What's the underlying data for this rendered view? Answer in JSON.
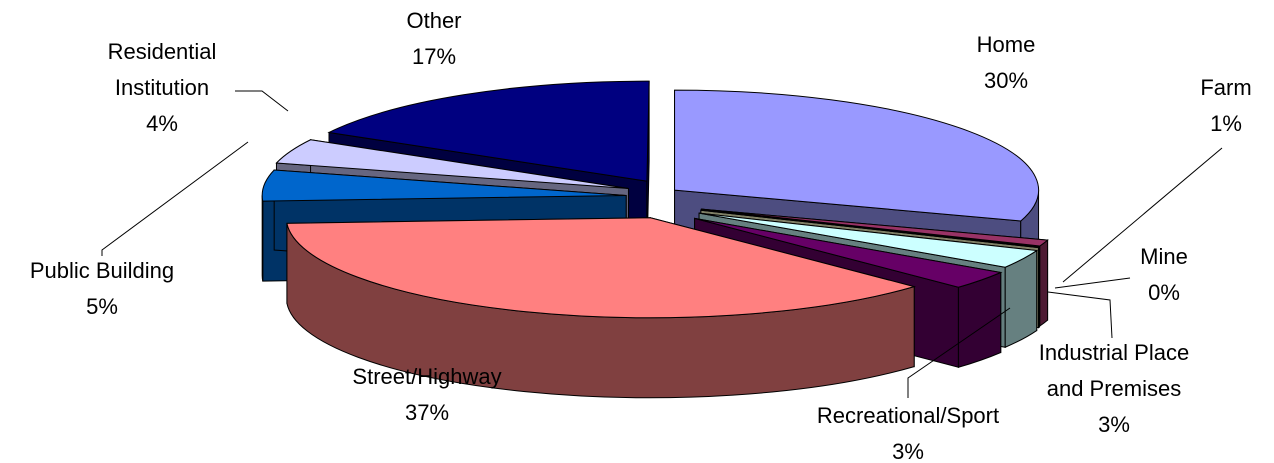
{
  "chart_data": {
    "type": "pie",
    "style": "3d-exploded",
    "title": "",
    "legend": "none",
    "slices": [
      {
        "name": "Home",
        "value": 30,
        "label": "30%",
        "color": "#9999ff",
        "side_color": "#4d4d80"
      },
      {
        "name": "Farm",
        "value": 1,
        "label": "1%",
        "color": "#993366",
        "side_color": "#4d1a33"
      },
      {
        "name": "Mine",
        "value": 0,
        "label": "0%",
        "color": "#ffffcc",
        "side_color": "#808066"
      },
      {
        "name": "Industrial Place and Premises",
        "value": 3,
        "label": "3%",
        "color": "#ccffff",
        "side_color": "#668080"
      },
      {
        "name": "Recreational/Sport",
        "value": 3,
        "label": "3%",
        "color": "#660066",
        "side_color": "#330033"
      },
      {
        "name": "Street/Highway",
        "value": 37,
        "label": "37%",
        "color": "#ff8080",
        "side_color": "#804040"
      },
      {
        "name": "Public Building",
        "value": 5,
        "label": "5%",
        "color": "#0066cc",
        "side_color": "#003366"
      },
      {
        "name": "Residential Institution",
        "value": 4,
        "label": "4%",
        "color": "#ccccff",
        "side_color": "#666680"
      },
      {
        "name": "Other",
        "value": 17,
        "label": "17%",
        "color": "#000080",
        "side_color": "#000040"
      }
    ],
    "display_lines": [
      [
        "Home"
      ],
      [
        "Farm"
      ],
      [
        "Mine"
      ],
      [
        "Industrial Place",
        "and Premises"
      ],
      [
        "Recreational/Sport"
      ],
      [
        "Street/Highway"
      ],
      [
        "Public Building"
      ],
      [
        "Residential",
        "Institution"
      ],
      [
        "Other"
      ]
    ]
  }
}
